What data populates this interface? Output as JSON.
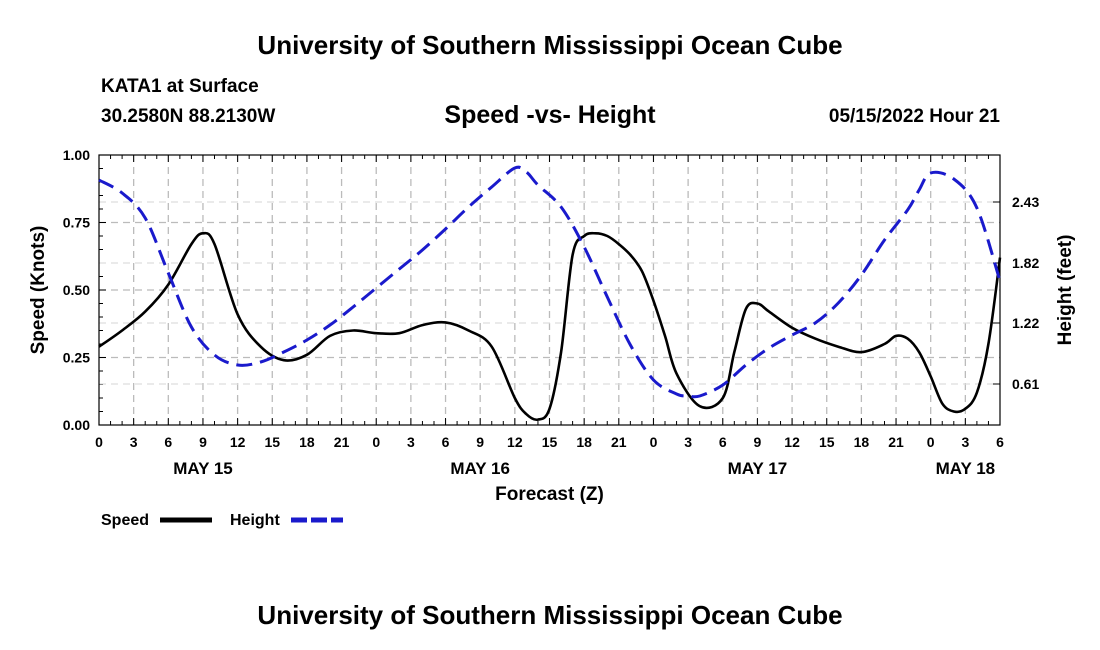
{
  "header": {
    "title_top": "University of Southern Mississippi Ocean Cube",
    "title_bottom": "University of Southern Mississippi Ocean Cube",
    "station": "KATA1 at Surface",
    "coords": "30.2580N  88.2130W",
    "subtitle": "Speed -vs- Height",
    "datetime": "05/15/2022 Hour 21"
  },
  "colors": {
    "speed": "#000000",
    "height": "#1a1acc",
    "grid": "#bbbbbb"
  },
  "chart_data": {
    "type": "line",
    "title": "Speed -vs- Height",
    "xlabel": "Forecast (Z)",
    "ylabel": "Speed (Knots)",
    "ylabel_right": "Height (feet)",
    "x_range": [
      0,
      78
    ],
    "ylim": [
      0,
      1.0
    ],
    "ylim_right": [
      0.2,
      2.9
    ],
    "x_ticks": [
      0,
      3,
      6,
      9,
      12,
      15,
      18,
      21,
      24,
      27,
      30,
      33,
      36,
      39,
      42,
      45,
      48,
      51,
      54,
      57,
      60,
      63,
      66,
      69,
      72,
      75,
      78
    ],
    "x_tick_labels": [
      "0",
      "3",
      "6",
      "9",
      "12",
      "15",
      "18",
      "21",
      "0",
      "3",
      "6",
      "9",
      "12",
      "15",
      "18",
      "21",
      "0",
      "3",
      "6",
      "9",
      "12",
      "15",
      "18",
      "21",
      "0",
      "3",
      "6"
    ],
    "day_labels": [
      {
        "x": 9,
        "label": "MAY 15"
      },
      {
        "x": 33,
        "label": "MAY 16"
      },
      {
        "x": 57,
        "label": "MAY 17"
      },
      {
        "x": 75,
        "label": "MAY 18"
      }
    ],
    "y_ticks": [
      0,
      0.25,
      0.5,
      0.75,
      1.0
    ],
    "y_tick_labels": [
      "0.00",
      "0.25",
      "0.50",
      "0.75",
      "1.00"
    ],
    "y_ticks_right": [
      0.61,
      1.22,
      1.82,
      2.43
    ],
    "y_tick_labels_right": [
      "0.61",
      "1.22",
      "1.82",
      "2.43"
    ],
    "series": [
      {
        "name": "Speed",
        "axis": "left",
        "style": "solid",
        "x": [
          0,
          2,
          4,
          6,
          8,
          9,
          10,
          12,
          14,
          16,
          18,
          20,
          22,
          24,
          26,
          28,
          30,
          32,
          34,
          36,
          37,
          38,
          39,
          40,
          41,
          42,
          43,
          44,
          45,
          46,
          47,
          48,
          49,
          50,
          52,
          54,
          55,
          56,
          57,
          58,
          60,
          62,
          64,
          66,
          68,
          69,
          70,
          71,
          72,
          73,
          74,
          75,
          76,
          77,
          78
        ],
        "values": [
          0.29,
          0.35,
          0.42,
          0.52,
          0.67,
          0.71,
          0.67,
          0.41,
          0.29,
          0.24,
          0.26,
          0.33,
          0.35,
          0.34,
          0.34,
          0.37,
          0.38,
          0.35,
          0.29,
          0.1,
          0.04,
          0.02,
          0.06,
          0.27,
          0.63,
          0.7,
          0.71,
          0.7,
          0.67,
          0.63,
          0.57,
          0.46,
          0.33,
          0.19,
          0.07,
          0.1,
          0.27,
          0.43,
          0.45,
          0.42,
          0.36,
          0.32,
          0.29,
          0.27,
          0.3,
          0.33,
          0.32,
          0.27,
          0.18,
          0.08,
          0.05,
          0.06,
          0.12,
          0.3,
          0.62
        ]
      },
      {
        "name": "Height",
        "axis": "right",
        "style": "dashed",
        "x": [
          0,
          2,
          4,
          6,
          8,
          10,
          12,
          14,
          16,
          18,
          20,
          22,
          24,
          26,
          28,
          30,
          32,
          34,
          36,
          37,
          38,
          40,
          42,
          44,
          46,
          48,
          50,
          51,
          52,
          54,
          56,
          58,
          60,
          62,
          64,
          66,
          68,
          70,
          71,
          72,
          74,
          76,
          78
        ],
        "values": [
          2.65,
          2.52,
          2.27,
          1.72,
          1.18,
          0.9,
          0.8,
          0.83,
          0.93,
          1.05,
          1.2,
          1.38,
          1.57,
          1.76,
          1.95,
          2.16,
          2.38,
          2.58,
          2.77,
          2.73,
          2.6,
          2.38,
          1.98,
          1.48,
          1.0,
          0.65,
          0.51,
          0.49,
          0.49,
          0.6,
          0.8,
          0.97,
          1.1,
          1.22,
          1.42,
          1.7,
          2.05,
          2.35,
          2.55,
          2.72,
          2.66,
          2.37,
          1.64
        ]
      }
    ],
    "legend": [
      {
        "label": "Speed",
        "style": "solid"
      },
      {
        "label": "Height",
        "style": "dashed"
      }
    ],
    "grid": true,
    "legend_position": "bottom-left"
  }
}
